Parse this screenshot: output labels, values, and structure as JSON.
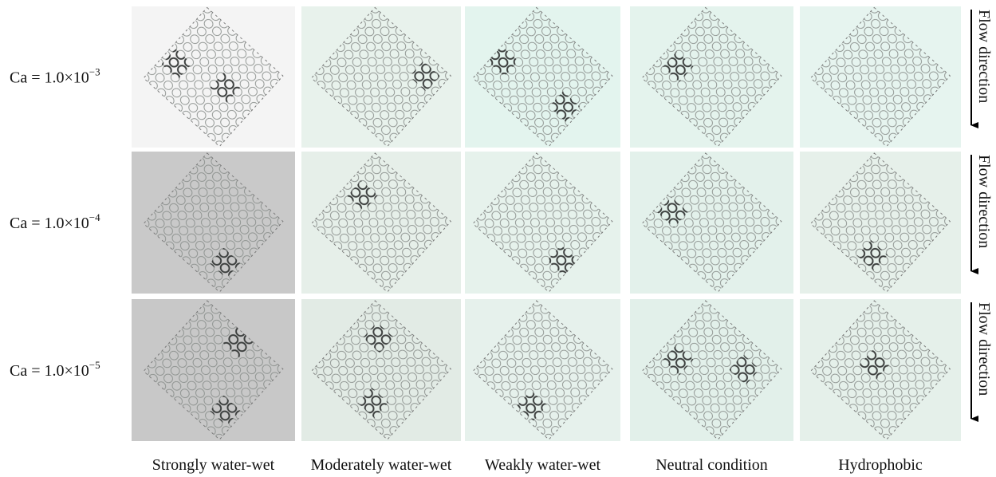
{
  "rows": [
    {
      "label": "Ca = 1.0×10",
      "exponent": "−3",
      "flow_label": "Flow direction"
    },
    {
      "label": "Ca = 1.0×10",
      "exponent": "−4",
      "flow_label": "Flow direction"
    },
    {
      "label": "Ca = 1.0×10",
      "exponent": "−5",
      "flow_label": "Flow direction"
    }
  ],
  "columns": [
    "Strongly water-wet",
    "Moderately water-wet",
    "Weakly water-wet",
    "Neutral condition",
    "Hydrophobic"
  ]
}
